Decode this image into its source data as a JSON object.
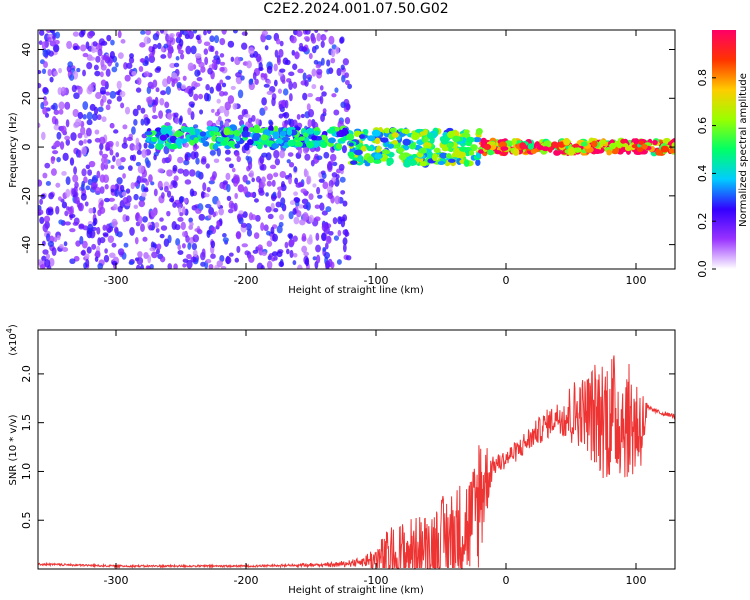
{
  "page_title": "C2E2.2024.001.07.50.G02",
  "chart_data": [
    {
      "type": "heatmap",
      "title": "C2E2.2024.001.07.50.G02",
      "xlabel": "Height of straight line (km)",
      "ylabel": "Frequency (Hz)",
      "xlim": [
        -360,
        130
      ],
      "ylim": [
        -50,
        48
      ],
      "x_ticks": [
        -300,
        -200,
        -100,
        0,
        100
      ],
      "y_ticks": [
        -40,
        -20,
        0,
        20,
        40
      ],
      "colorbar": {
        "label": "Normalized spectral amplitude",
        "range": [
          0.0,
          1.0
        ],
        "ticks": [
          "0.0",
          "0.2",
          "0.4",
          "0.6",
          "0.8"
        ],
        "colors": [
          "#ffffff",
          "#9933ff",
          "#3300ff",
          "#00ccff",
          "#00ff66",
          "#99ff00",
          "#ffcc00",
          "#ff3300",
          "#ff0066"
        ]
      },
      "description_regions": [
        {
          "x_range": [
            -360,
            -120
          ],
          "freq_spread": [
            -50,
            48
          ],
          "amplitude": 0.15
        },
        {
          "x_range": [
            -275,
            -120
          ],
          "freq_center": 4,
          "amplitude": 0.45
        },
        {
          "x_range": [
            -120,
            -20
          ],
          "freq_center": 0,
          "amplitude": 0.55
        },
        {
          "x_range": [
            -20,
            130
          ],
          "freq_center": 0,
          "amplitude": 0.9
        }
      ]
    },
    {
      "type": "line",
      "xlabel": "Height of straight line (km)",
      "ylabel": "SNR (10 * v/v)",
      "y_scale_note": "(x10",
      "y_scale_exp": "4",
      "xlim": [
        -360,
        130
      ],
      "ylim": [
        0,
        2.45
      ],
      "x_ticks": [
        -300,
        -200,
        -100,
        0,
        100
      ],
      "y_ticks": [
        "0.5",
        "1.0",
        "1.5",
        "2.0"
      ],
      "color": "#ee3333",
      "series": [
        {
          "x": [
            -360,
            -300,
            -200,
            -130,
            -110,
            -100,
            -90,
            -80,
            -70,
            -60,
            -50,
            -40,
            -30,
            -25,
            -20,
            -15,
            -10,
            0,
            10,
            20,
            30,
            40,
            50,
            60,
            70,
            80,
            90,
            100,
            105,
            110,
            120,
            130
          ],
          "y": [
            0.05,
            0.03,
            0.03,
            0.05,
            0.09,
            0.13,
            0.18,
            0.22,
            0.26,
            0.3,
            0.38,
            0.45,
            0.55,
            0.6,
            0.95,
            1.0,
            1.08,
            1.15,
            1.25,
            1.38,
            1.5,
            1.6,
            1.65,
            1.7,
            1.68,
            1.72,
            1.65,
            1.6,
            1.55,
            1.65,
            1.6,
            1.57
          ],
          "noise": [
            0.0,
            0.0,
            0.0,
            0.02,
            0.05,
            0.15,
            0.3,
            0.35,
            0.35,
            0.35,
            0.45,
            0.5,
            0.55,
            0.6,
            0.8,
            0.4,
            0.1,
            0.1,
            0.12,
            0.12,
            0.15,
            0.15,
            0.35,
            0.35,
            0.6,
            0.7,
            0.6,
            0.6,
            0.4,
            0.02,
            0.02,
            0.02
          ]
        }
      ]
    }
  ]
}
